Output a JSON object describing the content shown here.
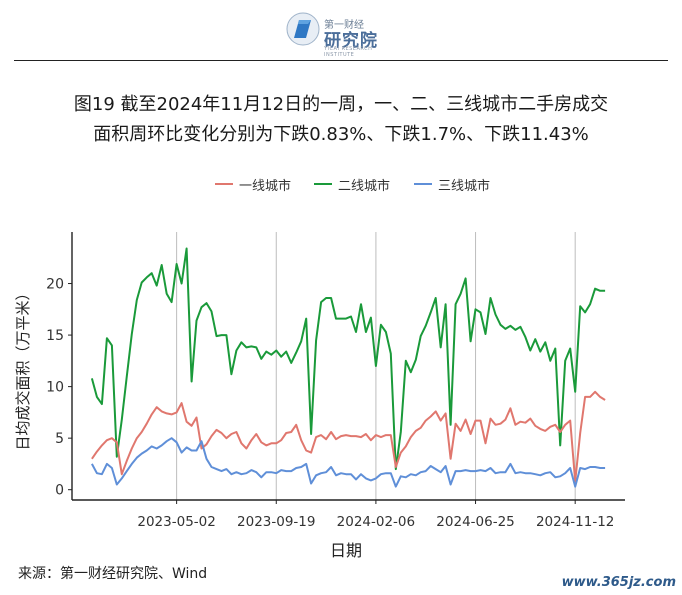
{
  "logo": {
    "top_text": "第一财经",
    "main_text": "研究院",
    "sub_text": "YICAI RESEARCH INSTITUTE"
  },
  "title": {
    "line1": "图19  截至2024年11月12日的一周，一、二、三线城市二手房成交",
    "line2": "面积周环比变化分别为下跌0.83%、下跌1.7%、下跌11.43%"
  },
  "source": "来源：第一财经研究院、Wind",
  "watermark": "www.365jz.com",
  "chart_data": {
    "type": "line",
    "xlabel": "日期",
    "ylabel": "日均成交面积（万平米）",
    "ylim": [
      -1,
      25
    ],
    "yticks": [
      0,
      5,
      10,
      15,
      20
    ],
    "xlim": [
      0,
      111
    ],
    "xticks": [
      {
        "index": 21,
        "label": "2023-05-02"
      },
      {
        "index": 41,
        "label": "2023-09-19"
      },
      {
        "index": 61,
        "label": "2024-02-06"
      },
      {
        "index": 81,
        "label": "2024-06-25"
      },
      {
        "index": 101,
        "label": "2024-11-12"
      }
    ],
    "grid_vertical": true,
    "legend_position": "top",
    "series": [
      {
        "name": "一线城市",
        "color": "#e0776e",
        "values": [
          3.0,
          3.7,
          4.3,
          4.8,
          5.0,
          4.6,
          1.5,
          2.8,
          4.0,
          5.0,
          5.6,
          6.4,
          7.3,
          8.0,
          7.6,
          7.4,
          7.3,
          7.5,
          8.4,
          6.6,
          6.2,
          7.0,
          4.0,
          4.4,
          5.2,
          5.8,
          5.5,
          5.0,
          5.4,
          5.6,
          4.5,
          4.0,
          4.8,
          5.4,
          4.6,
          4.3,
          4.5,
          4.5,
          4.8,
          5.5,
          5.6,
          6.3,
          4.8,
          3.8,
          3.6,
          5.1,
          5.3,
          4.9,
          5.6,
          4.9,
          5.2,
          5.3,
          5.2,
          5.2,
          5.1,
          5.4,
          4.8,
          5.3,
          5.1,
          5.3,
          5.3,
          2.2,
          3.6,
          4.2,
          5.1,
          5.7,
          6.0,
          6.7,
          7.1,
          7.6,
          6.7,
          7.4,
          3.0,
          6.4,
          5.7,
          6.8,
          5.4,
          6.7,
          6.7,
          4.5,
          6.9,
          6.3,
          6.4,
          6.8,
          7.9,
          6.3,
          6.6,
          6.5,
          6.9,
          6.2,
          5.9,
          5.7,
          6.1,
          6.3,
          5.6,
          6.3,
          6.7,
          0.8,
          5.5,
          9.0,
          9.0,
          9.5,
          9.0,
          8.7
        ]
      },
      {
        "name": "二线城市",
        "color": "#1a9a3a",
        "values": [
          10.8,
          9.0,
          8.3,
          14.7,
          14.0,
          3.2,
          6.8,
          11.0,
          15.1,
          18.4,
          20.1,
          20.6,
          21.0,
          19.8,
          21.8,
          19.0,
          18.2,
          21.9,
          20.0,
          23.4,
          10.5,
          16.4,
          17.7,
          18.1,
          17.3,
          14.9,
          15.0,
          15.0,
          11.2,
          13.5,
          14.3,
          13.8,
          13.9,
          13.8,
          12.7,
          13.4,
          13.1,
          13.5,
          12.9,
          13.4,
          12.3,
          13.3,
          14.4,
          16.6,
          5.4,
          14.5,
          18.2,
          18.6,
          18.6,
          16.6,
          16.6,
          16.6,
          16.8,
          15.3,
          18.0,
          15.3,
          16.7,
          12.0,
          16.0,
          15.3,
          13.2,
          2.0,
          5.6,
          12.5,
          11.4,
          12.6,
          14.9,
          15.9,
          17.2,
          18.6,
          13.8,
          18.0,
          6.3,
          18.0,
          19.0,
          20.5,
          14.4,
          17.5,
          17.2,
          15.1,
          18.6,
          17.0,
          16.0,
          15.6,
          15.9,
          15.5,
          15.8,
          14.8,
          13.5,
          14.6,
          13.4,
          14.3,
          12.5,
          13.7,
          4.3,
          12.5,
          13.7,
          9.5,
          17.8,
          17.2,
          18.0,
          19.5,
          19.3,
          19.3
        ]
      },
      {
        "name": "三线城市",
        "color": "#5f8fd8",
        "values": [
          2.5,
          1.6,
          1.5,
          2.5,
          2.1,
          0.5,
          1.1,
          1.8,
          2.5,
          3.1,
          3.5,
          3.8,
          4.2,
          4.0,
          4.3,
          4.7,
          5.0,
          4.6,
          3.6,
          4.1,
          3.8,
          3.8,
          4.7,
          3.0,
          2.2,
          2.0,
          1.8,
          2.0,
          1.5,
          1.7,
          1.5,
          1.6,
          1.9,
          1.7,
          1.2,
          1.7,
          1.7,
          1.6,
          1.9,
          1.8,
          1.8,
          2.1,
          2.2,
          2.5,
          0.6,
          1.4,
          1.6,
          1.7,
          2.2,
          1.4,
          1.6,
          1.5,
          1.5,
          1.0,
          1.5,
          1.1,
          0.9,
          1.1,
          1.5,
          1.6,
          1.6,
          0.3,
          1.3,
          1.2,
          1.5,
          1.4,
          1.7,
          1.8,
          2.3,
          2.0,
          1.7,
          2.3,
          0.5,
          1.8,
          1.8,
          1.9,
          1.8,
          1.8,
          1.9,
          1.8,
          2.1,
          1.6,
          1.7,
          1.7,
          2.5,
          1.6,
          1.7,
          1.6,
          1.6,
          1.5,
          1.4,
          1.6,
          1.7,
          1.2,
          1.3,
          1.6,
          2.1,
          0.3,
          2.1,
          2.0,
          2.2,
          2.2,
          2.1,
          2.1
        ]
      }
    ]
  }
}
